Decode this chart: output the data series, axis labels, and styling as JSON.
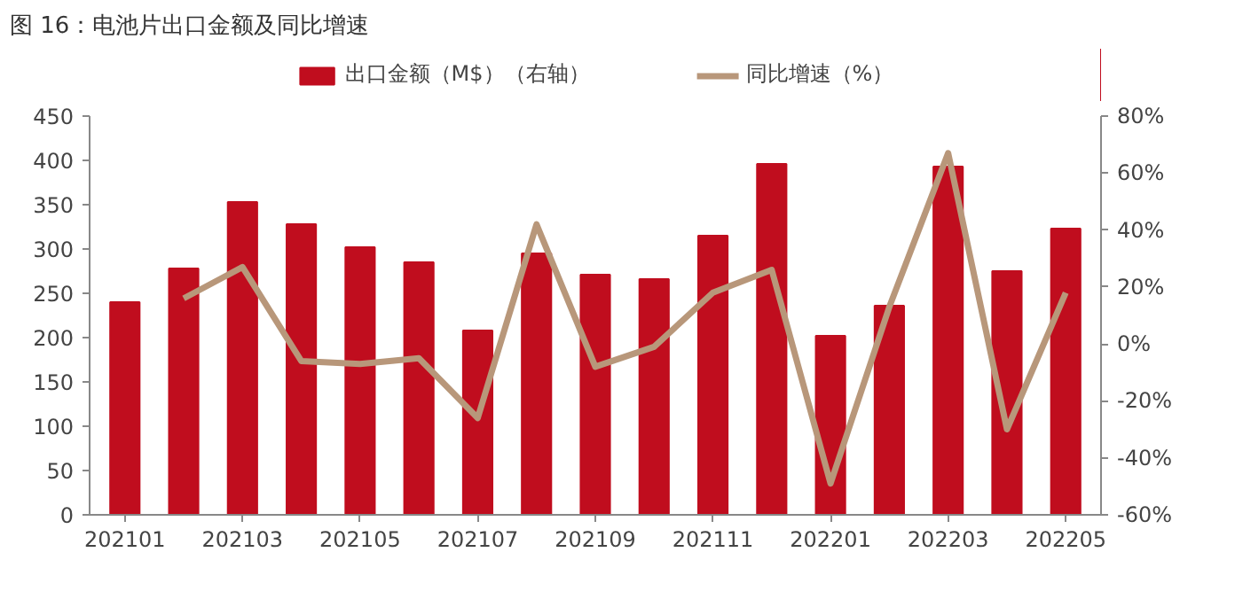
{
  "chart_data": {
    "type": "bar",
    "title": "图 16：电池片出口金额及同比增速",
    "categories": [
      "202101",
      null,
      "202103",
      null,
      "202105",
      null,
      "202107",
      null,
      "202109",
      null,
      "202111",
      null,
      "202201",
      null,
      "202203",
      null,
      "202205"
    ],
    "series": [
      {
        "name": "出口金额（M$）（右轴）",
        "color": "#c00d1e",
        "values": [
          240,
          278,
          353,
          328,
          302,
          285,
          208,
          295,
          271,
          266,
          315,
          396,
          202,
          236,
          393,
          275,
          323
        ]
      },
      {
        "name": "同比增速（%）",
        "type": "line",
        "axis": "y2",
        "color": "#b8977a",
        "values": [
          null,
          16,
          27,
          -6,
          -7,
          -5,
          -26,
          42,
          -8,
          -1,
          18,
          26,
          -49,
          13,
          67,
          -30,
          18
        ]
      }
    ],
    "ylim": [
      0,
      450
    ],
    "yticks": [
      0,
      50,
      100,
      150,
      200,
      250,
      300,
      350,
      400,
      450
    ],
    "y2lim": [
      -60,
      80
    ],
    "y2ticks": [
      {
        "value": -60,
        "label": "-60%"
      },
      {
        "value": -40,
        "label": "-40%"
      },
      {
        "value": -20,
        "label": "-20%"
      },
      {
        "value": 0,
        "label": "0%"
      },
      {
        "value": 20,
        "label": "20%"
      },
      {
        "value": 40,
        "label": "40%"
      },
      {
        "value": 60,
        "label": "60%"
      },
      {
        "value": 80,
        "label": "80%"
      }
    ],
    "grid": false,
    "legend": "top",
    "line_style": "solid"
  }
}
